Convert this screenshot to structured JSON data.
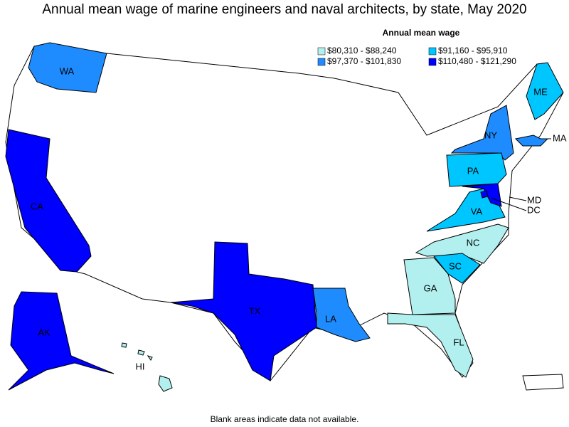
{
  "title": "Annual mean wage of marine engineers and naval architects, by state, May 2020",
  "legend": {
    "title": "Annual mean wage",
    "items": [
      {
        "label": "$80,310 - $88,240",
        "color": "#b2f0f0"
      },
      {
        "label": "$91,160 - $95,910",
        "color": "#00c6ff"
      },
      {
        "label": "$97,370 - $101,830",
        "color": "#1e8cff"
      },
      {
        "label": "$110,480 - $121,290",
        "color": "#0000ff"
      }
    ]
  },
  "states": [
    {
      "label": "WA",
      "color": "#1e8cff"
    },
    {
      "label": "CA",
      "color": "#0000ff"
    },
    {
      "label": "TX",
      "color": "#0000ff"
    },
    {
      "label": "AK",
      "color": "#0000ff"
    },
    {
      "label": "LA",
      "color": "#1e8cff"
    },
    {
      "label": "NY",
      "color": "#1e8cff"
    },
    {
      "label": "MA",
      "color": "#1e8cff"
    },
    {
      "label": "ME",
      "color": "#00c6ff"
    },
    {
      "label": "PA",
      "color": "#00c6ff"
    },
    {
      "label": "VA",
      "color": "#00c6ff"
    },
    {
      "label": "MD",
      "color": "#0000ff"
    },
    {
      "label": "DC",
      "color": "#0000ff"
    },
    {
      "label": "NC",
      "color": "#b2f0f0"
    },
    {
      "label": "SC",
      "color": "#00c6ff"
    },
    {
      "label": "GA",
      "color": "#b2f0f0"
    },
    {
      "label": "FL",
      "color": "#b2f0f0"
    },
    {
      "label": "HI",
      "color": "#b2f0f0"
    }
  ],
  "footnote": "Blank areas indicate data not available."
}
